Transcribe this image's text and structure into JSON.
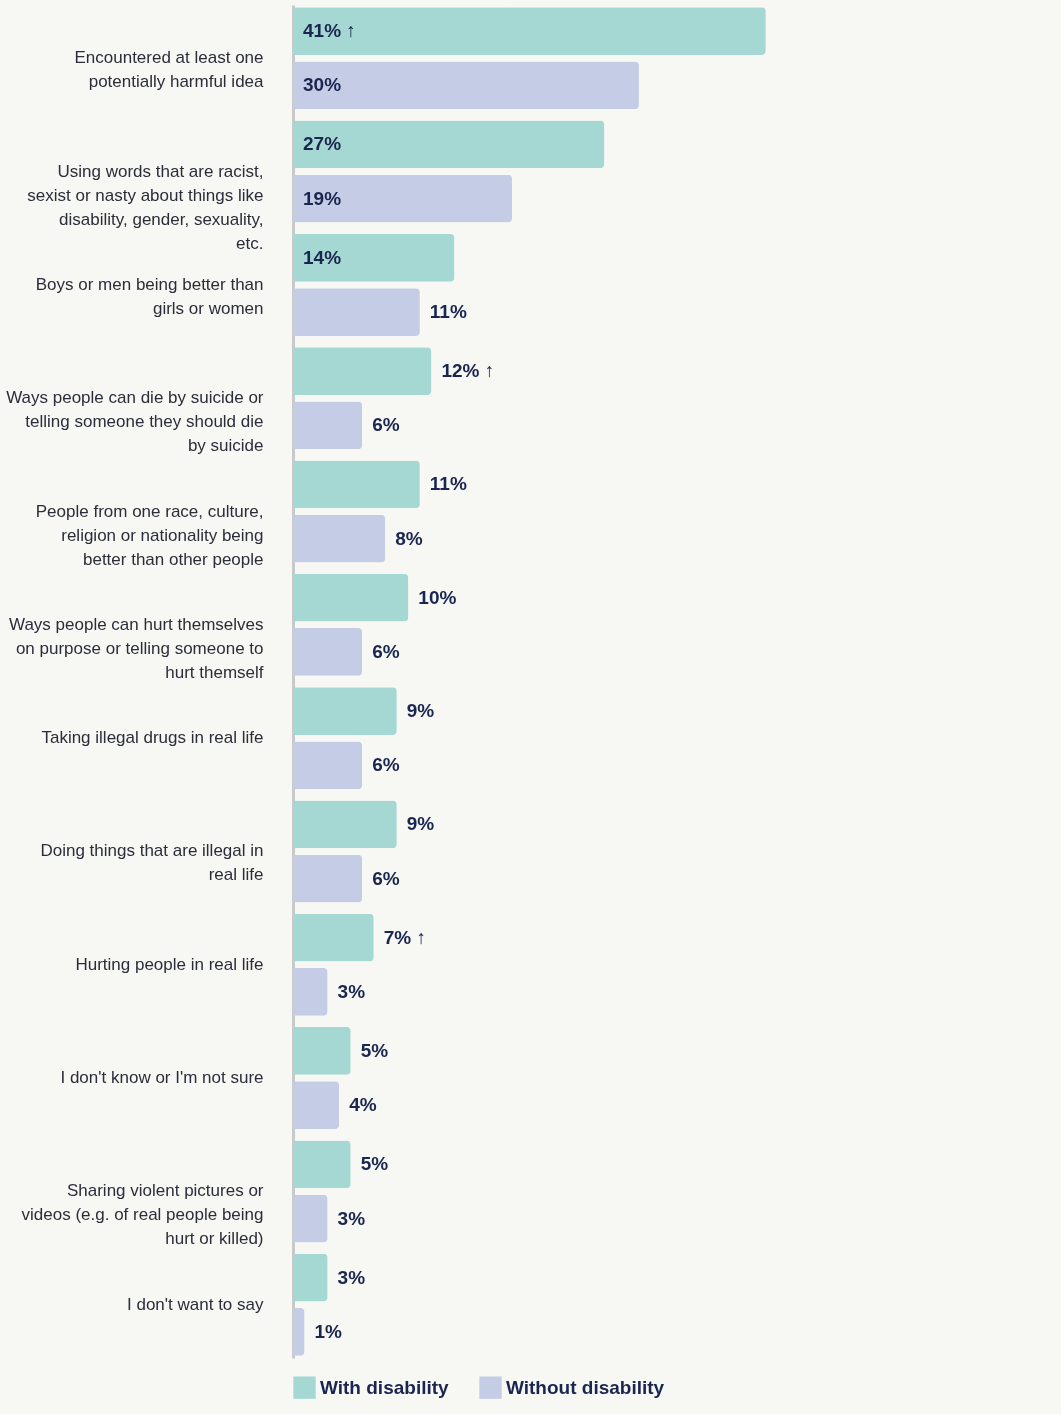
{
  "chart_data": {
    "type": "bar",
    "orientation": "horizontal",
    "legend": "bottom",
    "categories": [
      "Encountered at least one potentially harmful idea",
      "Using words that are racist, sexist or nasty about things like disability, gender, sexuality, etc.",
      "Boys or men being better than girls or women",
      "Ways people can die by suicide or telling someone they should die by suicide",
      "People from one race, culture, religion or nationality being better than other people",
      "Ways people can hurt themselves on purpose or telling someone to hurt themself",
      "Taking illegal drugs in real life",
      "Doing things that are illegal in real life",
      "Hurting people in real life",
      "I don't know or I'm not sure",
      "Sharing violent pictures or videos (e.g. of real people being hurt or killed)",
      "I don't want to say"
    ],
    "series": [
      {
        "name": "With disability",
        "color": "#a5d8d3",
        "values": [
          41,
          27,
          14,
          12,
          11,
          10,
          9,
          9,
          7,
          5,
          5,
          3
        ],
        "value_labels": [
          "41% ↑",
          "27%",
          "14%",
          "12% ↑",
          "11%",
          "10%",
          "9%",
          "9%",
          "7% ↑",
          "5%",
          "5%",
          "3%"
        ]
      },
      {
        "name": "Without disability",
        "color": "#c5cde6",
        "values": [
          30,
          19,
          11,
          6,
          8,
          6,
          6,
          6,
          3,
          4,
          3,
          1
        ],
        "value_labels": [
          "30%",
          "19%",
          "11%",
          "6%",
          "8%",
          "6%",
          "6%",
          "6%",
          "3%",
          "4%",
          "3%",
          "1%"
        ]
      }
    ]
  }
}
